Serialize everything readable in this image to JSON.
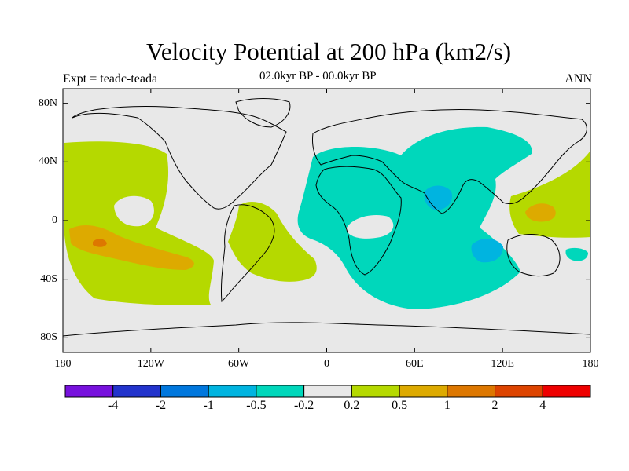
{
  "title": "Velocity Potential at 200 hPa (km2/s)",
  "subtitle": "02.0kyr BP - 00.0kyr BP",
  "experiment": "Expt = teadc-teada",
  "season": "ANN",
  "lat_ticks": [
    {
      "label": "80N",
      "lat": 80
    },
    {
      "label": "40N",
      "lat": 40
    },
    {
      "label": "0",
      "lat": 0
    },
    {
      "label": "40S",
      "lat": -40
    },
    {
      "label": "80S",
      "lat": -80
    }
  ],
  "lon_ticks": [
    {
      "label": "180",
      "lon": -180
    },
    {
      "label": "120W",
      "lon": -120
    },
    {
      "label": "60W",
      "lon": -60
    },
    {
      "label": "0",
      "lon": 0
    },
    {
      "label": "60E",
      "lon": 60
    },
    {
      "label": "120E",
      "lon": 120
    },
    {
      "label": "180",
      "lon": 180
    }
  ],
  "colorbar": {
    "colors": [
      "#7711dd",
      "#2233cc",
      "#0077dd",
      "#00b4e0",
      "#00d7bb",
      "#e8e8e8",
      "#b5d900",
      "#ddaa00",
      "#dd7700",
      "#dd4400",
      "#ee0000"
    ],
    "labels": [
      "-4",
      "-2",
      "-1",
      "-0.5",
      "-0.2",
      "0.2",
      "0.5",
      "1",
      "2",
      "4"
    ]
  },
  "colors": {
    "background": "#e8e8e8",
    "lvl_pos02": "#b5d900",
    "lvl_pos05": "#ddaa00",
    "lvl_pos1": "#dd7700",
    "lvl_neg02": "#00d7bb",
    "lvl_neg05": "#00b4e0"
  }
}
